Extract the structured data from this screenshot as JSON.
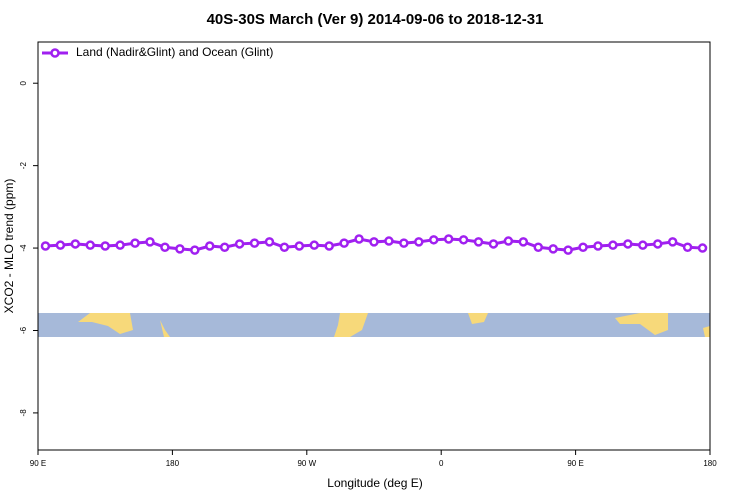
{
  "chart_data": {
    "type": "line",
    "title": "40S-30S March (Ver 9)   2014-09-06 to 2018-12-31",
    "xlabel": "Longitude (deg E)",
    "ylabel": "XCO2 - MLO trend (ppm)",
    "x": [
      95,
      105,
      115,
      125,
      135,
      145,
      155,
      165,
      175,
      185,
      195,
      205,
      215,
      225,
      235,
      245,
      255,
      265,
      275,
      285,
      295,
      305,
      315,
      325,
      335,
      345,
      355,
      365,
      375,
      385,
      395,
      405,
      415,
      425,
      435,
      445,
      455,
      465,
      475,
      485,
      495,
      505,
      515,
      525,
      535
    ],
    "series": [
      {
        "name": "Land (Nadir&Glint) and Ocean (Glint)",
        "color": "#a020f0",
        "values": [
          -3.95,
          -3.93,
          -3.9,
          -3.93,
          -3.95,
          -3.93,
          -3.88,
          -3.85,
          -3.98,
          -4.02,
          -4.05,
          -3.95,
          -3.98,
          -3.9,
          -3.88,
          -3.85,
          -3.98,
          -3.95,
          -3.93,
          -3.95,
          -3.88,
          -3.78,
          -3.85,
          -3.83,
          -3.88,
          -3.85,
          -3.8,
          -3.78,
          -3.8,
          -3.85,
          -3.9,
          -3.83,
          -3.85,
          -3.98,
          -4.02,
          -4.05,
          -3.98,
          -3.95,
          -3.93,
          -3.9,
          -3.93,
          -3.9,
          -3.85,
          -3.98,
          -4.0
        ]
      }
    ],
    "xlim": [
      90,
      540
    ],
    "xticks": [
      {
        "value": 90,
        "label": "90 E"
      },
      180,
      {
        "value": 270,
        "label": "90 W"
      },
      {
        "value": 360,
        "label": "0"
      },
      {
        "value": 450,
        "label": "90 E"
      },
      {
        "value": 540,
        "label": "180"
      }
    ],
    "ylim": [
      -8.9,
      1.0
    ],
    "yticks": [
      0,
      -2,
      -4,
      -6,
      -8
    ],
    "legend": "top-left"
  }
}
